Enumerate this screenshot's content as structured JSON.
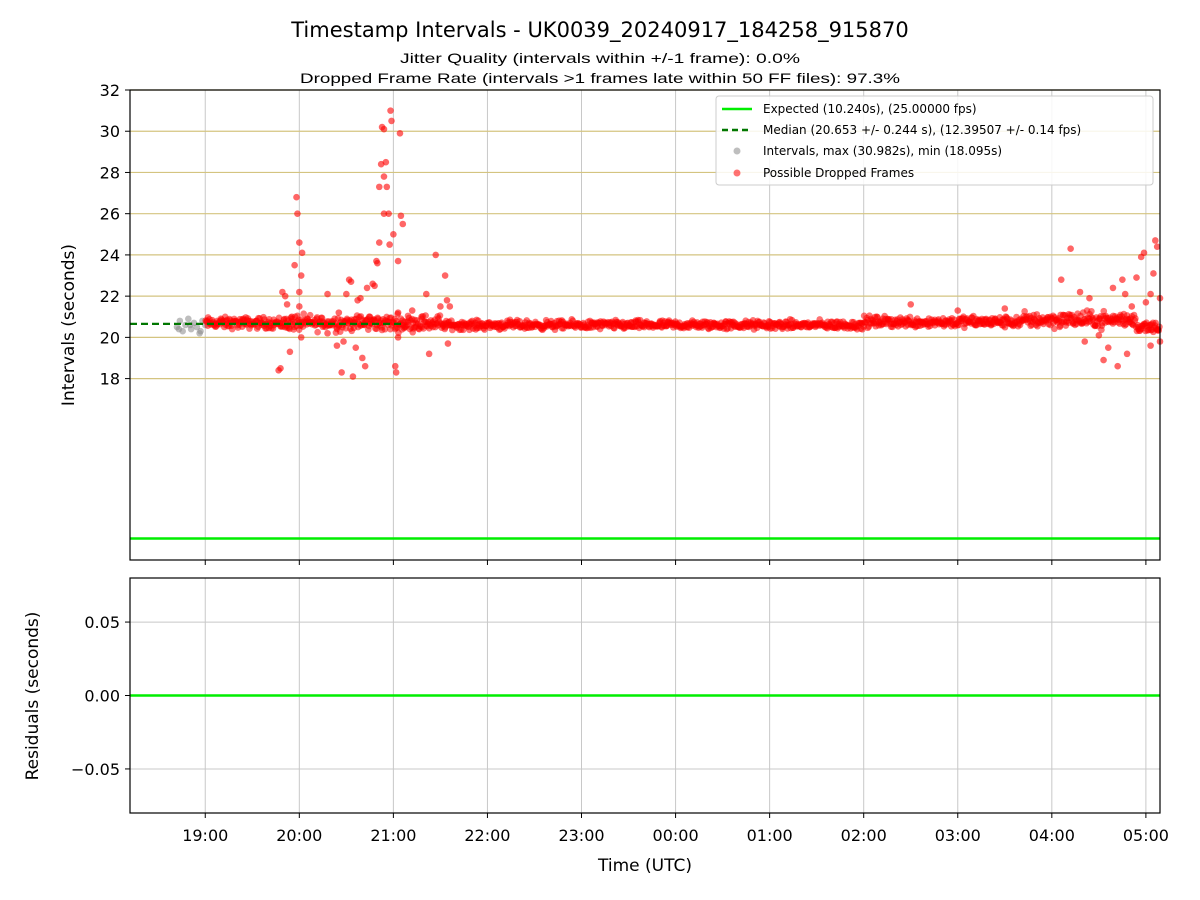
{
  "figure": {
    "title": "Timestamp Intervals - UK0039_20240917_184258_915870",
    "subtitle_1": "Jitter Quality (intervals within +/-1 frame): 0.0%",
    "subtitle_2": "Dropped Frame Rate (intervals >1 frames late within 50 FF files): 97.3%"
  },
  "colors": {
    "expected": "#00ee00",
    "median": "#007700",
    "intervals": "#888888",
    "dropped": "#ff0000",
    "hgrid": "#d4c480",
    "vgrid": "#c8c8c8"
  },
  "chart_data": [
    {
      "type": "scatter",
      "name": "intervals",
      "ylabel": "Intervals (seconds)",
      "ylim": [
        9.2,
        32
      ],
      "y_ticks": [
        "18",
        "20",
        "22",
        "24",
        "26",
        "28",
        "30",
        "32"
      ],
      "grid": true,
      "legend_placement": "top-right",
      "legend": [
        {
          "kind": "line",
          "color": "#00ee00",
          "label": "Expected (10.240s), (25.00000 fps)"
        },
        {
          "kind": "dashed",
          "color": "#007700",
          "label": "Median (20.653 +/- 0.244 s), (12.39507 +/- 0.14 fps)"
        },
        {
          "kind": "dot",
          "color": "#888888",
          "label": "Intervals, max (30.982s), min (18.095s)"
        },
        {
          "kind": "dot",
          "color": "#ff0000",
          "label": "Possible Dropped Frames"
        }
      ],
      "expected_interval": 10.24,
      "median_interval": 20.653,
      "median_line_end_hours": 2.1,
      "x_range_hours": [
        -0.8,
        10.15
      ],
      "x_note": "hours relative to 19:00 UTC on the first night",
      "series": [
        {
          "name": "Intervals",
          "color": "#888888",
          "points": [
            [
              -0.3,
              20.5
            ],
            [
              -0.27,
              20.8
            ],
            [
              -0.24,
              20.3
            ],
            [
              -0.21,
              20.6
            ],
            [
              -0.18,
              20.9
            ],
            [
              -0.15,
              20.4
            ],
            [
              -0.12,
              20.7
            ],
            [
              -0.09,
              20.5
            ],
            [
              -0.06,
              20.2
            ],
            [
              -0.03,
              20.8
            ],
            [
              0.0,
              20.6
            ],
            [
              -0.28,
              20.4
            ],
            [
              -0.16,
              20.6
            ],
            [
              -0.05,
              20.3
            ]
          ]
        },
        {
          "name": "Possible Dropped Frames",
          "color": "#ff0000",
          "band_segments": [
            [
              0.0,
              0.8,
              20.7,
              0.25
            ],
            [
              0.8,
              2.5,
              20.7,
              0.35
            ],
            [
              2.5,
              7.0,
              20.6,
              0.2
            ],
            [
              7.0,
              8.7,
              20.75,
              0.25
            ],
            [
              8.7,
              9.9,
              20.85,
              0.35
            ],
            [
              9.9,
              10.15,
              20.5,
              0.25
            ]
          ],
          "outliers": [
            [
              0.78,
              18.4
            ],
            [
              0.8,
              18.5
            ],
            [
              0.82,
              22.2
            ],
            [
              0.85,
              22.0
            ],
            [
              0.87,
              21.6
            ],
            [
              0.9,
              19.3
            ],
            [
              0.92,
              21.0
            ],
            [
              0.95,
              23.5
            ],
            [
              0.97,
              26.8
            ],
            [
              0.98,
              26.0
            ],
            [
              1.0,
              22.2
            ],
            [
              1.0,
              21.5
            ],
            [
              1.02,
              23.0
            ],
            [
              1.02,
              20.0
            ],
            [
              1.0,
              24.6
            ],
            [
              1.03,
              24.1
            ],
            [
              1.3,
              22.1
            ],
            [
              1.3,
              20.2
            ],
            [
              1.4,
              19.6
            ],
            [
              1.42,
              21.2
            ],
            [
              1.45,
              18.3
            ],
            [
              1.47,
              19.8
            ],
            [
              1.5,
              22.1
            ],
            [
              1.53,
              22.8
            ],
            [
              1.55,
              22.7
            ],
            [
              1.57,
              18.1
            ],
            [
              1.6,
              19.5
            ],
            [
              1.62,
              21.8
            ],
            [
              1.65,
              21.9
            ],
            [
              1.67,
              19.0
            ],
            [
              1.7,
              18.6
            ],
            [
              1.72,
              22.4
            ],
            [
              1.75,
              21.0
            ],
            [
              1.78,
              22.6
            ],
            [
              1.8,
              22.5
            ],
            [
              1.82,
              23.7
            ],
            [
              1.83,
              23.6
            ],
            [
              1.85,
              24.6
            ],
            [
              1.85,
              27.3
            ],
            [
              1.87,
              28.4
            ],
            [
              1.88,
              30.2
            ],
            [
              1.9,
              30.1
            ],
            [
              1.9,
              27.8
            ],
            [
              1.9,
              26.0
            ],
            [
              1.92,
              28.5
            ],
            [
              1.93,
              27.3
            ],
            [
              1.95,
              26.0
            ],
            [
              1.96,
              24.5
            ],
            [
              1.97,
              31.0
            ],
            [
              1.98,
              30.5
            ],
            [
              2.0,
              25.0
            ],
            [
              2.02,
              18.6
            ],
            [
              2.03,
              18.3
            ],
            [
              2.05,
              21.2
            ],
            [
              2.05,
              23.7
            ],
            [
              2.07,
              29.9
            ],
            [
              2.08,
              25.9
            ],
            [
              2.1,
              25.5
            ],
            [
              2.12,
              20.5
            ],
            [
              2.05,
              20.0
            ],
            [
              2.2,
              21.3
            ],
            [
              2.3,
              21.0
            ],
            [
              2.35,
              22.1
            ],
            [
              2.38,
              19.2
            ],
            [
              2.45,
              24.0
            ],
            [
              2.5,
              21.5
            ],
            [
              2.55,
              23.0
            ],
            [
              2.57,
              21.8
            ],
            [
              2.58,
              19.7
            ],
            [
              2.6,
              21.5
            ],
            [
              7.5,
              21.6
            ],
            [
              8.0,
              21.3
            ],
            [
              8.5,
              21.4
            ],
            [
              9.1,
              22.8
            ],
            [
              9.2,
              24.3
            ],
            [
              9.3,
              22.2
            ],
            [
              9.35,
              19.8
            ],
            [
              9.4,
              21.9
            ],
            [
              9.5,
              20.1
            ],
            [
              9.55,
              18.9
            ],
            [
              9.6,
              19.5
            ],
            [
              9.65,
              22.4
            ],
            [
              9.7,
              18.6
            ],
            [
              9.75,
              22.8
            ],
            [
              9.78,
              22.1
            ],
            [
              9.8,
              19.2
            ],
            [
              9.85,
              21.5
            ],
            [
              9.9,
              22.9
            ],
            [
              9.95,
              23.9
            ],
            [
              9.98,
              24.1
            ],
            [
              10.0,
              21.7
            ],
            [
              10.05,
              19.6
            ],
            [
              10.08,
              23.1
            ],
            [
              10.1,
              24.7
            ],
            [
              10.12,
              24.4
            ],
            [
              10.15,
              21.9
            ],
            [
              10.15,
              19.8
            ],
            [
              10.05,
              22.1
            ]
          ]
        }
      ]
    },
    {
      "type": "line",
      "name": "residuals",
      "xlabel": "Time (UTC)",
      "ylabel": "Residuals (seconds)",
      "ylim": [
        -0.08,
        0.08
      ],
      "y_ticks": [
        "0.05",
        "0.00",
        "−0.05"
      ],
      "y_tick_values": [
        0.05,
        0.0,
        -0.05
      ],
      "x_tick_labels": [
        "19:00",
        "20:00",
        "21:00",
        "22:00",
        "23:00",
        "00:00",
        "01:00",
        "02:00",
        "03:00",
        "04:00",
        "05:00"
      ],
      "grid": true,
      "series": [
        {
          "name": "residual-line",
          "color": "#00ee00",
          "x": [
            -0.8,
            10.15
          ],
          "y": [
            0.0,
            0.0
          ]
        }
      ]
    }
  ]
}
